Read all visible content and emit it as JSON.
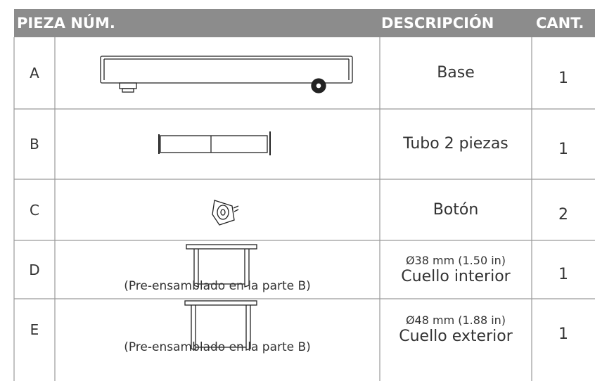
{
  "header": {
    "part": "PIEZA NÚM.",
    "description": "DESCRIPCIÓN",
    "qty": "CANT."
  },
  "rows": [
    {
      "part": "A",
      "description": [
        "Base"
      ],
      "qty": "1"
    },
    {
      "part": "B",
      "description": [
        "Tubo 2 piezas"
      ],
      "qty": "1"
    },
    {
      "part": "C",
      "description": [
        "Botón"
      ],
      "qty": "2"
    },
    {
      "part": "D",
      "note": "(Pre-ensamblado en la parte B)",
      "description": [
        "Ø38 mm (1.50 in)",
        "Cuello interior"
      ],
      "qty": "1"
    },
    {
      "part": "E",
      "note": "(Pre-ensamblado en la parte B)",
      "description": [
        "Ø48 mm (1.88 in)",
        "Cuello exterior"
      ],
      "qty": "1"
    }
  ]
}
